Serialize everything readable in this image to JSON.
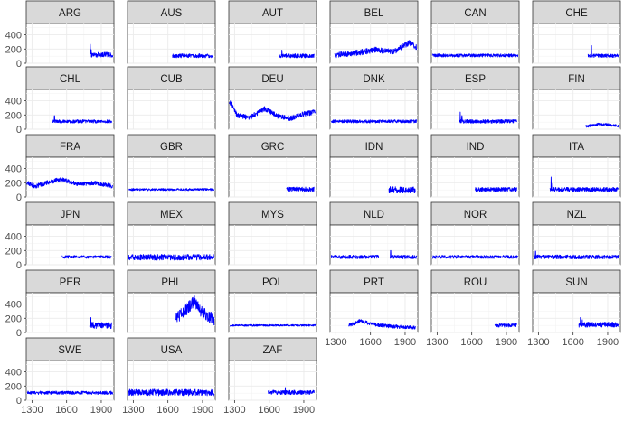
{
  "chart_data": {
    "type": "line",
    "layout": "faceted small multiples, 6 columns",
    "title": "",
    "xlabel": "",
    "ylabel": "",
    "xlim": [
      1250,
      2010
    ],
    "ylim": [
      0,
      560
    ],
    "x_ticks": [
      1300,
      1600,
      1900
    ],
    "y_ticks": [
      0,
      200,
      400
    ],
    "grid": true,
    "line_color": "#0000ff",
    "panel_background": "#ffffff",
    "strip_background": "#d9d9d9",
    "grid_color": "#ebebeb",
    "panels": [
      {
        "label": "ARG",
        "x0": 1805,
        "x1": 2000,
        "base": 120,
        "amp": 35,
        "spikes": [
          [
            1805,
            270
          ],
          [
            1812,
            190
          ]
        ]
      },
      {
        "label": "AUS",
        "x0": 1640,
        "x1": 1990,
        "base": 105,
        "amp": 28
      },
      {
        "label": "AUT",
        "x0": 1690,
        "x1": 1990,
        "base": 105,
        "amp": 28,
        "spikes": [
          [
            1710,
            185
          ]
        ]
      },
      {
        "label": "BEL",
        "x0": 1290,
        "x1": 2000,
        "base": 110,
        "amp": 40,
        "trend": [
          [
            1290,
            110
          ],
          [
            1500,
            150
          ],
          [
            1650,
            190
          ],
          [
            1800,
            160
          ],
          [
            1940,
            290
          ],
          [
            2000,
            220
          ]
        ]
      },
      {
        "label": "CAN",
        "x0": 1260,
        "x1": 2000,
        "base": 110,
        "amp": 22
      },
      {
        "label": "CHE",
        "x0": 1730,
        "x1": 2000,
        "base": 105,
        "amp": 25,
        "spikes": [
          [
            1760,
            250
          ]
        ]
      },
      {
        "label": "CHL",
        "x0": 1480,
        "x1": 1990,
        "base": 110,
        "amp": 22,
        "spikes": [
          [
            1495,
            190
          ]
        ]
      },
      {
        "label": "CUB",
        "x0": null,
        "x1": null
      },
      {
        "label": "DEU",
        "x0": 1255,
        "x1": 2000,
        "base": 170,
        "amp": 35,
        "trend": [
          [
            1255,
            400
          ],
          [
            1320,
            200
          ],
          [
            1430,
            160
          ],
          [
            1560,
            290
          ],
          [
            1680,
            180
          ],
          [
            1780,
            150
          ],
          [
            1880,
            210
          ],
          [
            2000,
            240
          ]
        ]
      },
      {
        "label": "DNK",
        "x0": 1260,
        "x1": 2000,
        "base": 110,
        "amp": 22
      },
      {
        "label": "ESP",
        "x0": 1490,
        "x1": 1990,
        "base": 110,
        "amp": 25,
        "spikes": [
          [
            1500,
            240
          ],
          [
            1515,
            190
          ]
        ]
      },
      {
        "label": "FIN",
        "x0": 1710,
        "x1": 2000,
        "base": 60,
        "amp": 18,
        "trend": [
          [
            1710,
            40
          ],
          [
            1820,
            70
          ],
          [
            1920,
            60
          ],
          [
            2000,
            40
          ]
        ]
      },
      {
        "label": "FRA",
        "x0": 1255,
        "x1": 2000,
        "base": 170,
        "amp": 30,
        "trend": [
          [
            1255,
            200
          ],
          [
            1330,
            150
          ],
          [
            1450,
            210
          ],
          [
            1550,
            250
          ],
          [
            1700,
            180
          ],
          [
            1850,
            200
          ],
          [
            2000,
            150
          ]
        ]
      },
      {
        "label": "GBR",
        "x0": 1260,
        "x1": 2000,
        "base": 105,
        "amp": 15
      },
      {
        "label": "GRC",
        "x0": 1750,
        "x1": 1990,
        "base": 110,
        "amp": 30
      },
      {
        "label": "IDN",
        "x0": 1760,
        "x1": 1990,
        "base": 100,
        "amp": 45
      },
      {
        "label": "IND",
        "x0": 1630,
        "x1": 1990,
        "base": 105,
        "amp": 30
      },
      {
        "label": "ITA",
        "x0": 1400,
        "x1": 1990,
        "base": 105,
        "amp": 30,
        "spikes": [
          [
            1410,
            280
          ],
          [
            1425,
            190
          ]
        ]
      },
      {
        "label": "JPN",
        "x0": 1560,
        "x1": 1990,
        "base": 110,
        "amp": 20
      },
      {
        "label": "MEX",
        "x0": 1260,
        "x1": 2000,
        "base": 105,
        "amp": 40
      },
      {
        "label": "MYS",
        "x0": null,
        "x1": null
      },
      {
        "label": "NLD",
        "x0": 1260,
        "x1": 2000,
        "base": 110,
        "amp": 25,
        "gap": [
          1670,
          1770
        ],
        "spikes": [
          [
            1775,
            200
          ]
        ]
      },
      {
        "label": "NOR",
        "x0": 1260,
        "x1": 2000,
        "base": 110,
        "amp": 22
      },
      {
        "label": "NZL",
        "x0": 1260,
        "x1": 2000,
        "base": 110,
        "amp": 28,
        "spikes": [
          [
            1275,
            190
          ]
        ]
      },
      {
        "label": "PER",
        "x0": 1800,
        "x1": 1990,
        "base": 100,
        "amp": 45,
        "spikes": [
          [
            1810,
            210
          ]
        ]
      },
      {
        "label": "PHL",
        "x0": 1670,
        "x1": 2000,
        "base": 220,
        "amp": 80,
        "trend": [
          [
            1670,
            200
          ],
          [
            1760,
            320
          ],
          [
            1830,
            450
          ],
          [
            1880,
            300
          ],
          [
            2000,
            180
          ]
        ]
      },
      {
        "label": "POL",
        "x0": 1260,
        "x1": 2000,
        "base": 100,
        "amp": 12
      },
      {
        "label": "PRT",
        "x0": 1410,
        "x1": 1990,
        "base": 110,
        "amp": 25,
        "trend": [
          [
            1410,
            100
          ],
          [
            1520,
            170
          ],
          [
            1600,
            120
          ],
          [
            1750,
            90
          ],
          [
            1990,
            70
          ]
        ]
      },
      {
        "label": "ROU",
        "x0": 1800,
        "x1": 1990,
        "base": 100,
        "amp": 25
      },
      {
        "label": "SUN",
        "x0": 1650,
        "x1": 2000,
        "base": 110,
        "amp": 35,
        "spikes": [
          [
            1665,
            210
          ],
          [
            1680,
            180
          ]
        ]
      },
      {
        "label": "SWE",
        "x0": 1260,
        "x1": 2000,
        "base": 105,
        "amp": 22
      },
      {
        "label": "USA",
        "x0": 1260,
        "x1": 2000,
        "base": 110,
        "amp": 45
      },
      {
        "label": "ZAF",
        "x0": 1590,
        "x1": 1990,
        "base": 110,
        "amp": 30,
        "spikes": [
          [
            1740,
            180
          ]
        ]
      }
    ]
  }
}
